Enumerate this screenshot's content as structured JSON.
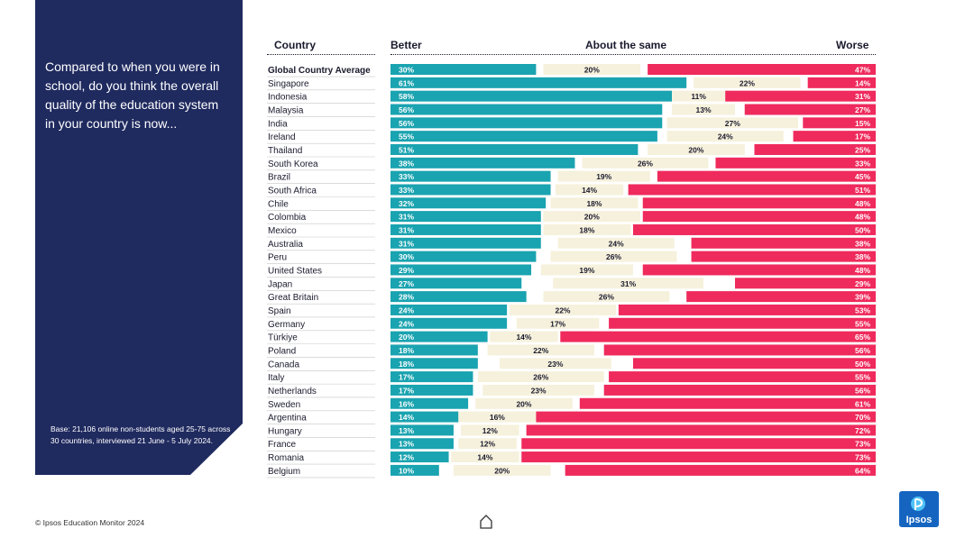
{
  "question": "Compared to when you were in school, do you think the overall quality of the education system in your country is now...",
  "base_note": "Base: 21,106 online non-students aged 25-75 across 30 countries, interviewed 21 June - 5 July 2024.",
  "footer": "© Ipsos Education Monitor 2024",
  "logo_text": "Ipsos",
  "headers": {
    "country": "Country",
    "better": "Better",
    "same": "About the same",
    "worse": "Worse"
  },
  "colors": {
    "better": "#1aa3b0",
    "same": "#f6f1dc",
    "worse": "#ef2a5c",
    "panel": "#1f2a5f",
    "logo": "#1565c0"
  },
  "chart_data": {
    "type": "bar",
    "stacked": true,
    "series_names": [
      "Better",
      "About the same",
      "Worse"
    ],
    "categories": [
      "Global Country Average",
      "Singapore",
      "Indonesia",
      "Malaysia",
      "India",
      "Ireland",
      "Thailand",
      "South Korea",
      "Brazil",
      "South Africa",
      "Chile",
      "Colombia",
      "Mexico",
      "Australia",
      "Peru",
      "United States",
      "Japan",
      "Great Britain",
      "Spain",
      "Germany",
      "Türkiye",
      "Poland",
      "Canada",
      "Italy",
      "Netherlands",
      "Sweden",
      "Argentina",
      "Hungary",
      "France",
      "Romania",
      "Belgium"
    ],
    "better": [
      30,
      61,
      58,
      56,
      56,
      55,
      51,
      38,
      33,
      33,
      32,
      31,
      31,
      31,
      30,
      29,
      27,
      28,
      24,
      24,
      20,
      18,
      18,
      17,
      17,
      16,
      14,
      13,
      13,
      12,
      10
    ],
    "same": [
      20,
      22,
      11,
      13,
      27,
      24,
      20,
      26,
      19,
      14,
      18,
      20,
      18,
      24,
      26,
      19,
      31,
      26,
      22,
      17,
      14,
      22,
      23,
      26,
      23,
      20,
      16,
      12,
      12,
      14,
      20
    ],
    "worse": [
      47,
      14,
      31,
      27,
      15,
      17,
      25,
      33,
      45,
      51,
      48,
      48,
      50,
      38,
      38,
      48,
      29,
      39,
      53,
      55,
      65,
      56,
      50,
      55,
      56,
      61,
      70,
      72,
      73,
      73,
      64
    ]
  }
}
